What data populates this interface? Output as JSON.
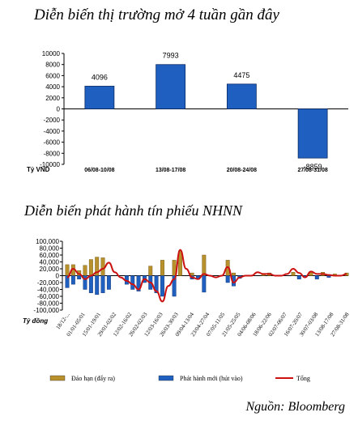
{
  "chart_data": [
    {
      "type": "bar",
      "title": "Diễn biến thị trường mở 4 tuần gần đây",
      "ylabel": "Tỷ VND",
      "categories": [
        "06/08-10/08",
        "13/08-17/08",
        "20/08-24/08",
        "27/08-31/08"
      ],
      "values": [
        4096,
        7993,
        4475,
        -8859
      ],
      "value_labels": [
        "4096",
        "7993",
        "4475",
        "-8859"
      ],
      "ylim": [
        -10000,
        10000
      ],
      "yticks": [
        10000,
        8000,
        6000,
        4000,
        2000,
        0,
        -2000,
        -4000,
        -6000,
        -8000,
        -10000
      ],
      "ytick_labels": [
        "10000",
        "8000",
        "6000",
        "4000",
        "2000",
        "0",
        "-2000",
        "-4000",
        "-6000",
        "-8000",
        "-10000"
      ],
      "bar_color": "#1f5fbf",
      "grid": false
    },
    {
      "type": "bar",
      "title": "Diễn biến phát hành tín phiếu NHNN",
      "ylabel": "Tỷ đồng",
      "ylim": [
        -100000,
        100000
      ],
      "yticks": [
        100000,
        80000,
        60000,
        40000,
        20000,
        0,
        -20000,
        -40000,
        -60000,
        -80000,
        -100000
      ],
      "ytick_labels": [
        "100,000",
        "80,000",
        "60,000",
        "40,000",
        "20,000",
        "0",
        "-20,000",
        "-40,000",
        "-60,000",
        "-80,000",
        "-100,000"
      ],
      "xtick_labels": [
        "18/12-...",
        "01/01-05/01",
        "15/01-19/01",
        "29/01-02/02",
        "12/02-16/02",
        "26/02-02/03",
        "12/03-16/03",
        "26/03-30/03",
        "09/04-13/04",
        "23/04-27/04",
        "07/05-11/05",
        "21/05-25/05",
        "04/06-08/06",
        "18/06-22/06",
        "02/07-06/07",
        "16/07-20/07",
        "30/07-03/08",
        "13/08-17/08",
        "27/08-31/08"
      ],
      "legend": [
        "Đáo hạn (đẩy ra)",
        "Phát hành mới (hút vào)",
        "Tổng"
      ],
      "legend_position": "bottom",
      "series": [
        {
          "name": "Đáo hạn (đẩy ra)",
          "color": "#b8902c",
          "values": [
            32000,
            32000,
            15000,
            30000,
            47000,
            54000,
            52000,
            0,
            0,
            0,
            0,
            0,
            0,
            0,
            28000,
            0,
            45000,
            0,
            45000,
            72000,
            0,
            8000,
            0,
            60000,
            0,
            0,
            0,
            45000,
            8000,
            0,
            0,
            0,
            0,
            5000,
            8000,
            0,
            0,
            0,
            10000,
            0,
            0,
            10000,
            0,
            10000,
            0,
            5000,
            0,
            8000
          ]
        },
        {
          "name": "Phát hành mới (hút vào)",
          "color": "#1f5fbf",
          "values": [
            -35000,
            -25000,
            -10000,
            -40000,
            -50000,
            -55000,
            -50000,
            -40000,
            0,
            0,
            -25000,
            -40000,
            -45000,
            -20000,
            -40000,
            -50000,
            -60000,
            0,
            -60000,
            0,
            0,
            -10000,
            -10000,
            -48000,
            0,
            0,
            0,
            -20000,
            -30000,
            -8000,
            0,
            0,
            0,
            0,
            0,
            0,
            0,
            0,
            0,
            -10000,
            -5000,
            0,
            -10000,
            0,
            -5000,
            0,
            0,
            0
          ]
        },
        {
          "name": "Tổng",
          "color": "#cc1111",
          "values": [
            -5000,
            20000,
            5000,
            -10000,
            0,
            10000,
            20000,
            38000,
            10000,
            -5000,
            -15000,
            -25000,
            -40000,
            -10000,
            -20000,
            -45000,
            -75000,
            -30000,
            -10000,
            75000,
            20000,
            -5000,
            -10000,
            5000,
            0,
            -5000,
            0,
            25000,
            -20000,
            -5000,
            0,
            0,
            10000,
            5000,
            5000,
            0,
            0,
            5000,
            20000,
            8000,
            -5000,
            12000,
            5000,
            5000,
            2000,
            0,
            0,
            5000
          ]
        }
      ],
      "grid": false
    }
  ],
  "source": "Nguồn: Bloomberg"
}
